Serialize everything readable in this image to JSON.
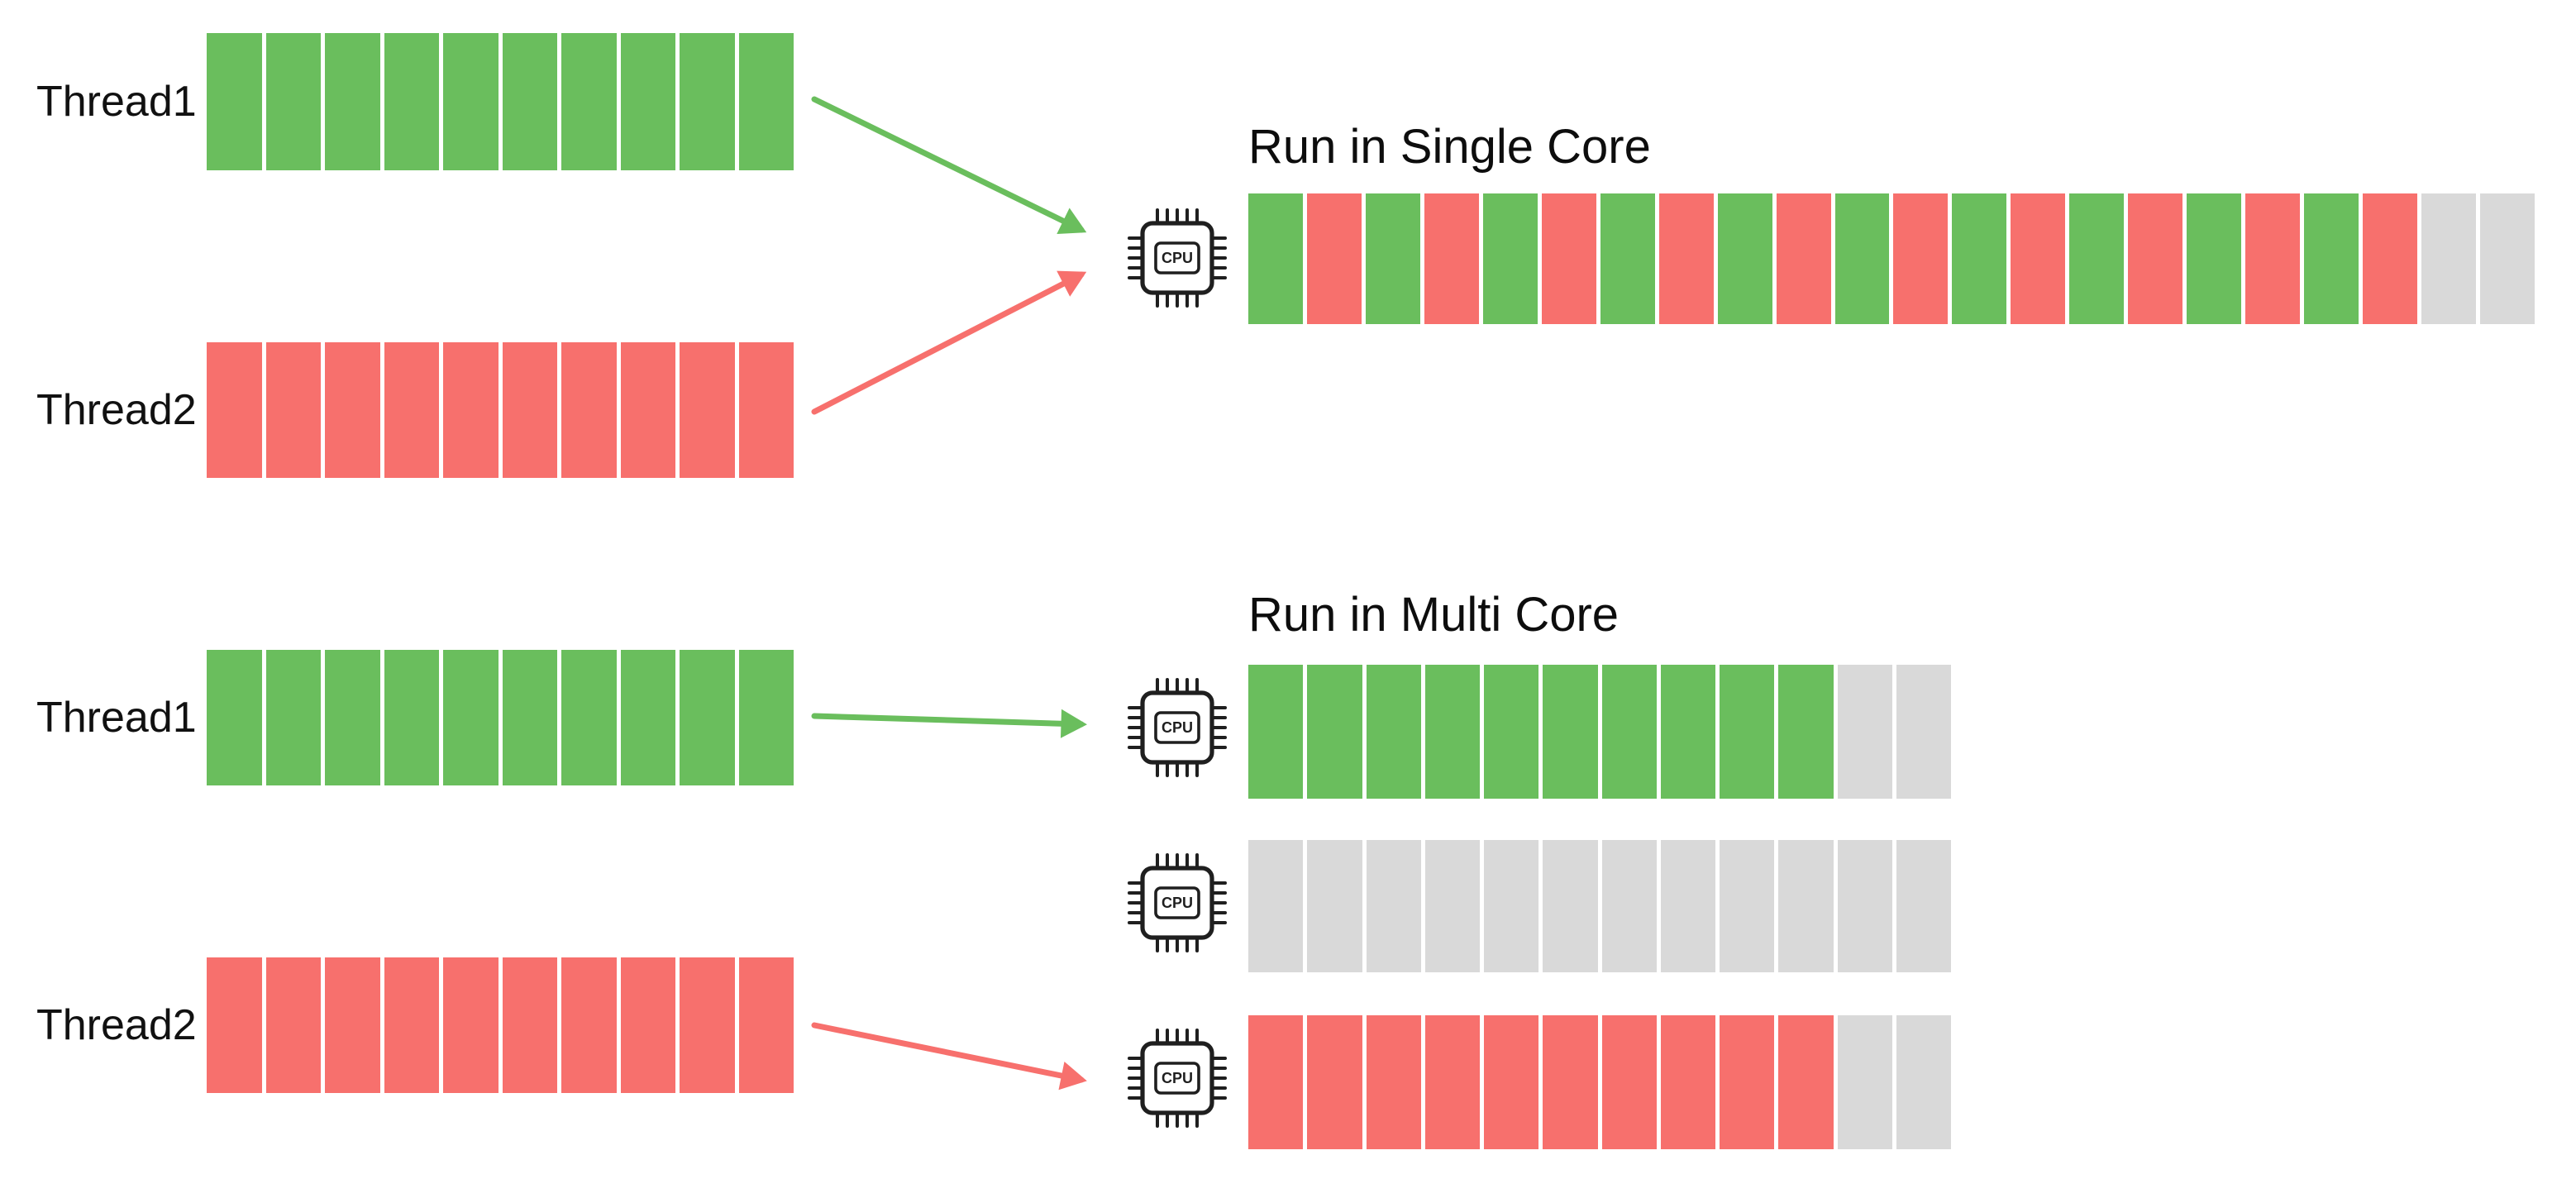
{
  "cpu_label": "CPU",
  "colors": {
    "green": "#6abe5d",
    "red": "#f7706d",
    "idle": "#d9d9d9",
    "ink": "#1f1f1f"
  },
  "single_core": {
    "title": "Run in Single Core",
    "thread1": {
      "label": "Thread1",
      "bar": [
        "green",
        "green",
        "green",
        "green",
        "green",
        "green",
        "green",
        "green",
        "green",
        "green"
      ]
    },
    "thread2": {
      "label": "Thread2",
      "bar": [
        "red",
        "red",
        "red",
        "red",
        "red",
        "red",
        "red",
        "red",
        "red",
        "red"
      ]
    },
    "cpu_timeline": [
      "green",
      "red",
      "green",
      "red",
      "green",
      "red",
      "green",
      "red",
      "green",
      "red",
      "green",
      "red",
      "green",
      "red",
      "green",
      "red",
      "green",
      "red",
      "green",
      "red",
      "idle",
      "idle"
    ]
  },
  "multi_core": {
    "title": "Run in Multi Core",
    "thread1": {
      "label": "Thread1",
      "bar": [
        "green",
        "green",
        "green",
        "green",
        "green",
        "green",
        "green",
        "green",
        "green",
        "green"
      ]
    },
    "thread2": {
      "label": "Thread2",
      "bar": [
        "red",
        "red",
        "red",
        "red",
        "red",
        "red",
        "red",
        "red",
        "red",
        "red"
      ]
    },
    "cpu1_timeline": [
      "green",
      "green",
      "green",
      "green",
      "green",
      "green",
      "green",
      "green",
      "green",
      "green",
      "idle",
      "idle"
    ],
    "cpu2_timeline": [
      "idle",
      "idle",
      "idle",
      "idle",
      "idle",
      "idle",
      "idle",
      "idle",
      "idle",
      "idle",
      "idle",
      "idle"
    ],
    "cpu3_timeline": [
      "red",
      "red",
      "red",
      "red",
      "red",
      "red",
      "red",
      "red",
      "red",
      "red",
      "idle",
      "idle"
    ]
  }
}
